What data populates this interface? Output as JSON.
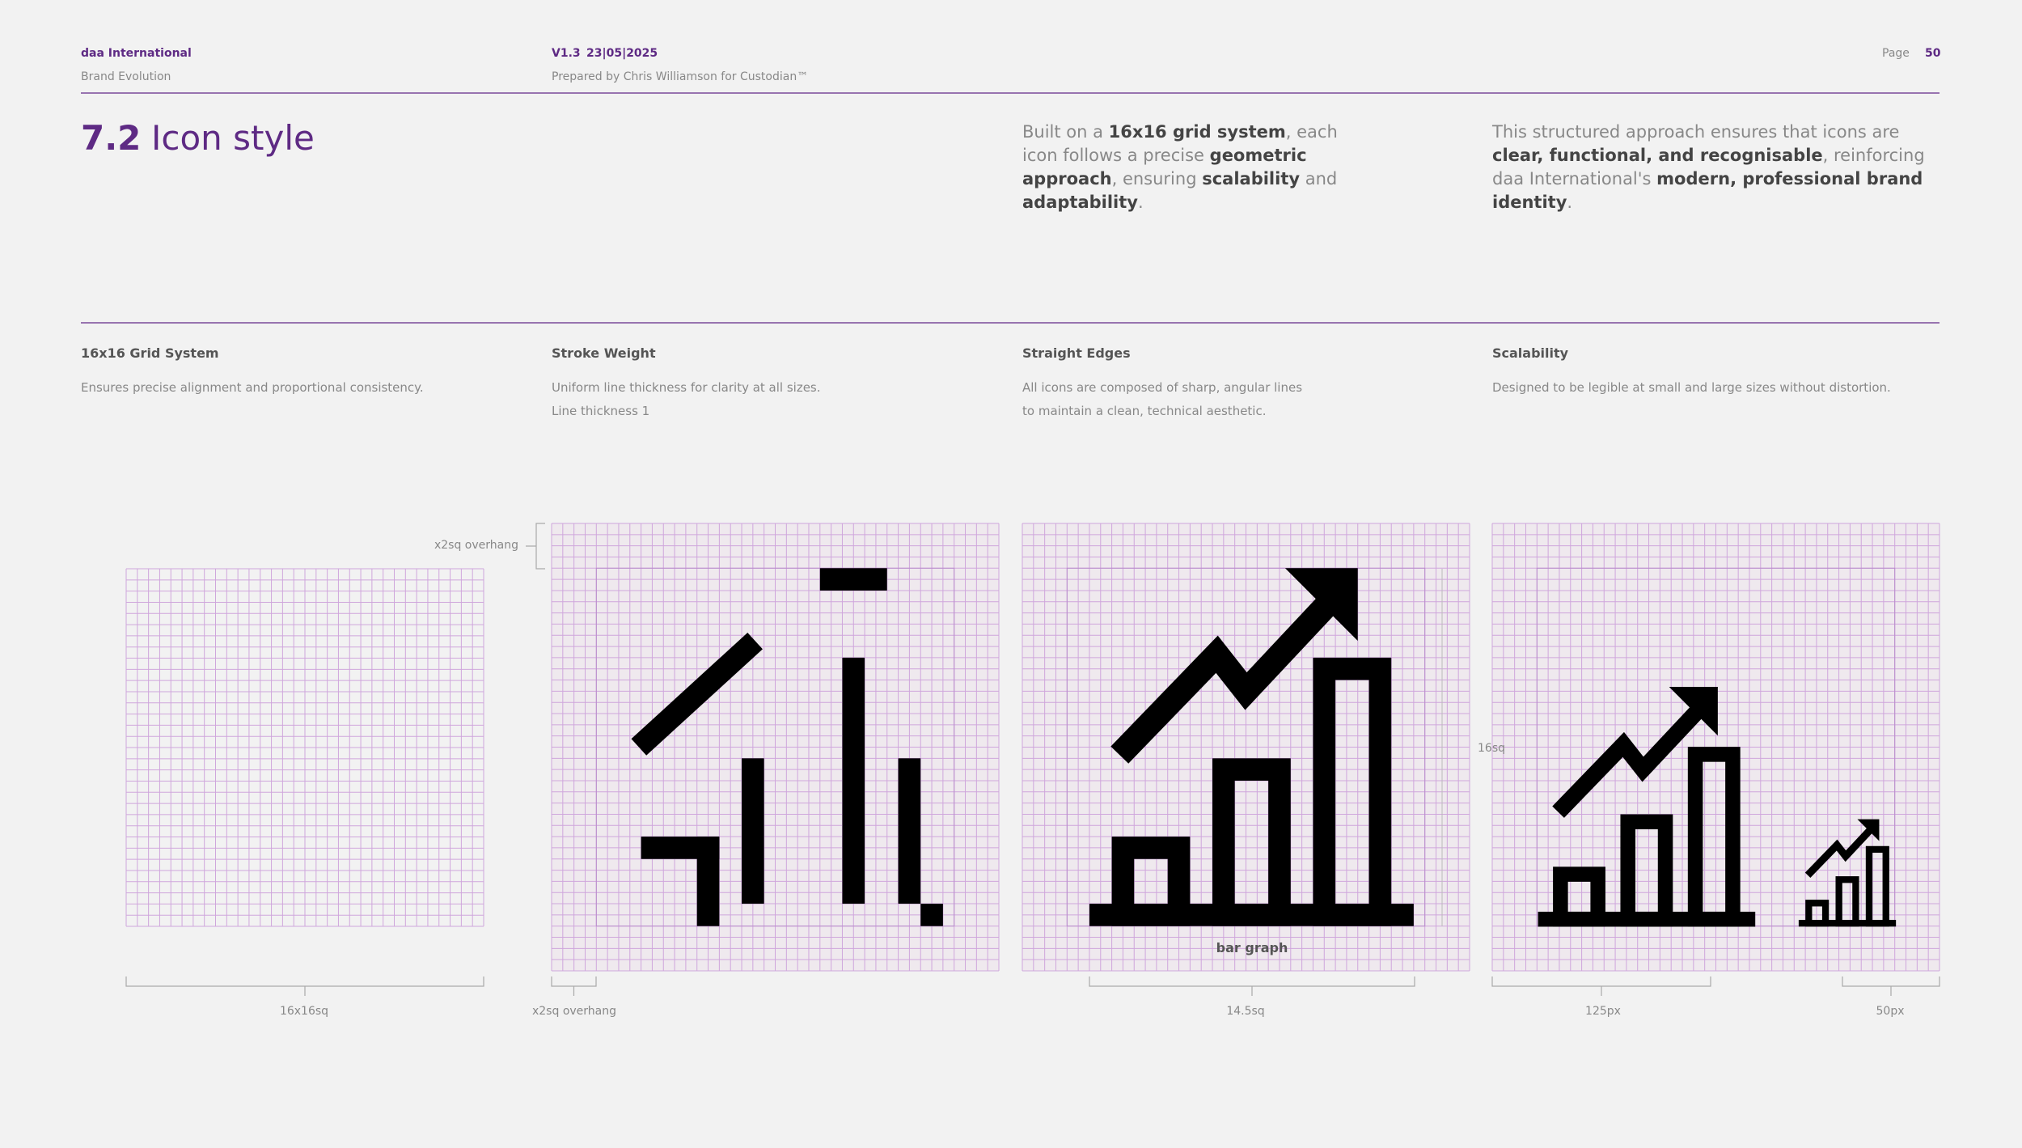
{
  "header": {
    "company": "daa International",
    "document": "Brand Evolution",
    "version": "V1.3",
    "date": "23|05|2025",
    "prepared_by": "Prepared by Chris Williamson for Custodian™",
    "page_label": "Page",
    "page_number": "50"
  },
  "section": {
    "number": "7.2",
    "title": "Icon style"
  },
  "intro": [
    [
      "Built on a ",
      "16x16 grid system",
      ", each icon follows a precise ",
      "geometric approach",
      ", ensuring ",
      "scalability",
      " and ",
      "adaptability",
      "."
    ],
    [
      "This structured approach ensures that icons are ",
      "clear, functional, and recognisable",
      ", reinforcing daa International's ",
      "modern, professional brand identity",
      "."
    ]
  ],
  "principles": [
    {
      "title": "16x16 Grid System",
      "description": [
        "Ensures precise alignment and proportional consistency."
      ]
    },
    {
      "title": "Stroke Weight",
      "description": [
        "Uniform line thickness for clarity at all sizes.",
        "Line thickness 1"
      ]
    },
    {
      "title": "Straight Edges",
      "description": [
        "All icons are composed of sharp, angular lines",
        "to maintain a clean, technical aesthetic."
      ]
    },
    {
      "title": "Scalability",
      "description": [
        "Designed to be legible at small and large sizes without distortion."
      ]
    }
  ],
  "annotations": {
    "overhang_top": "x2sq overhang",
    "grid_size": "16x16sq",
    "overhang": "x2sq overhang",
    "icon_size": "14.5sq",
    "icon_name": "bar graph",
    "grid_height": "16sq",
    "large_size": "125px",
    "small_size": "50px"
  }
}
